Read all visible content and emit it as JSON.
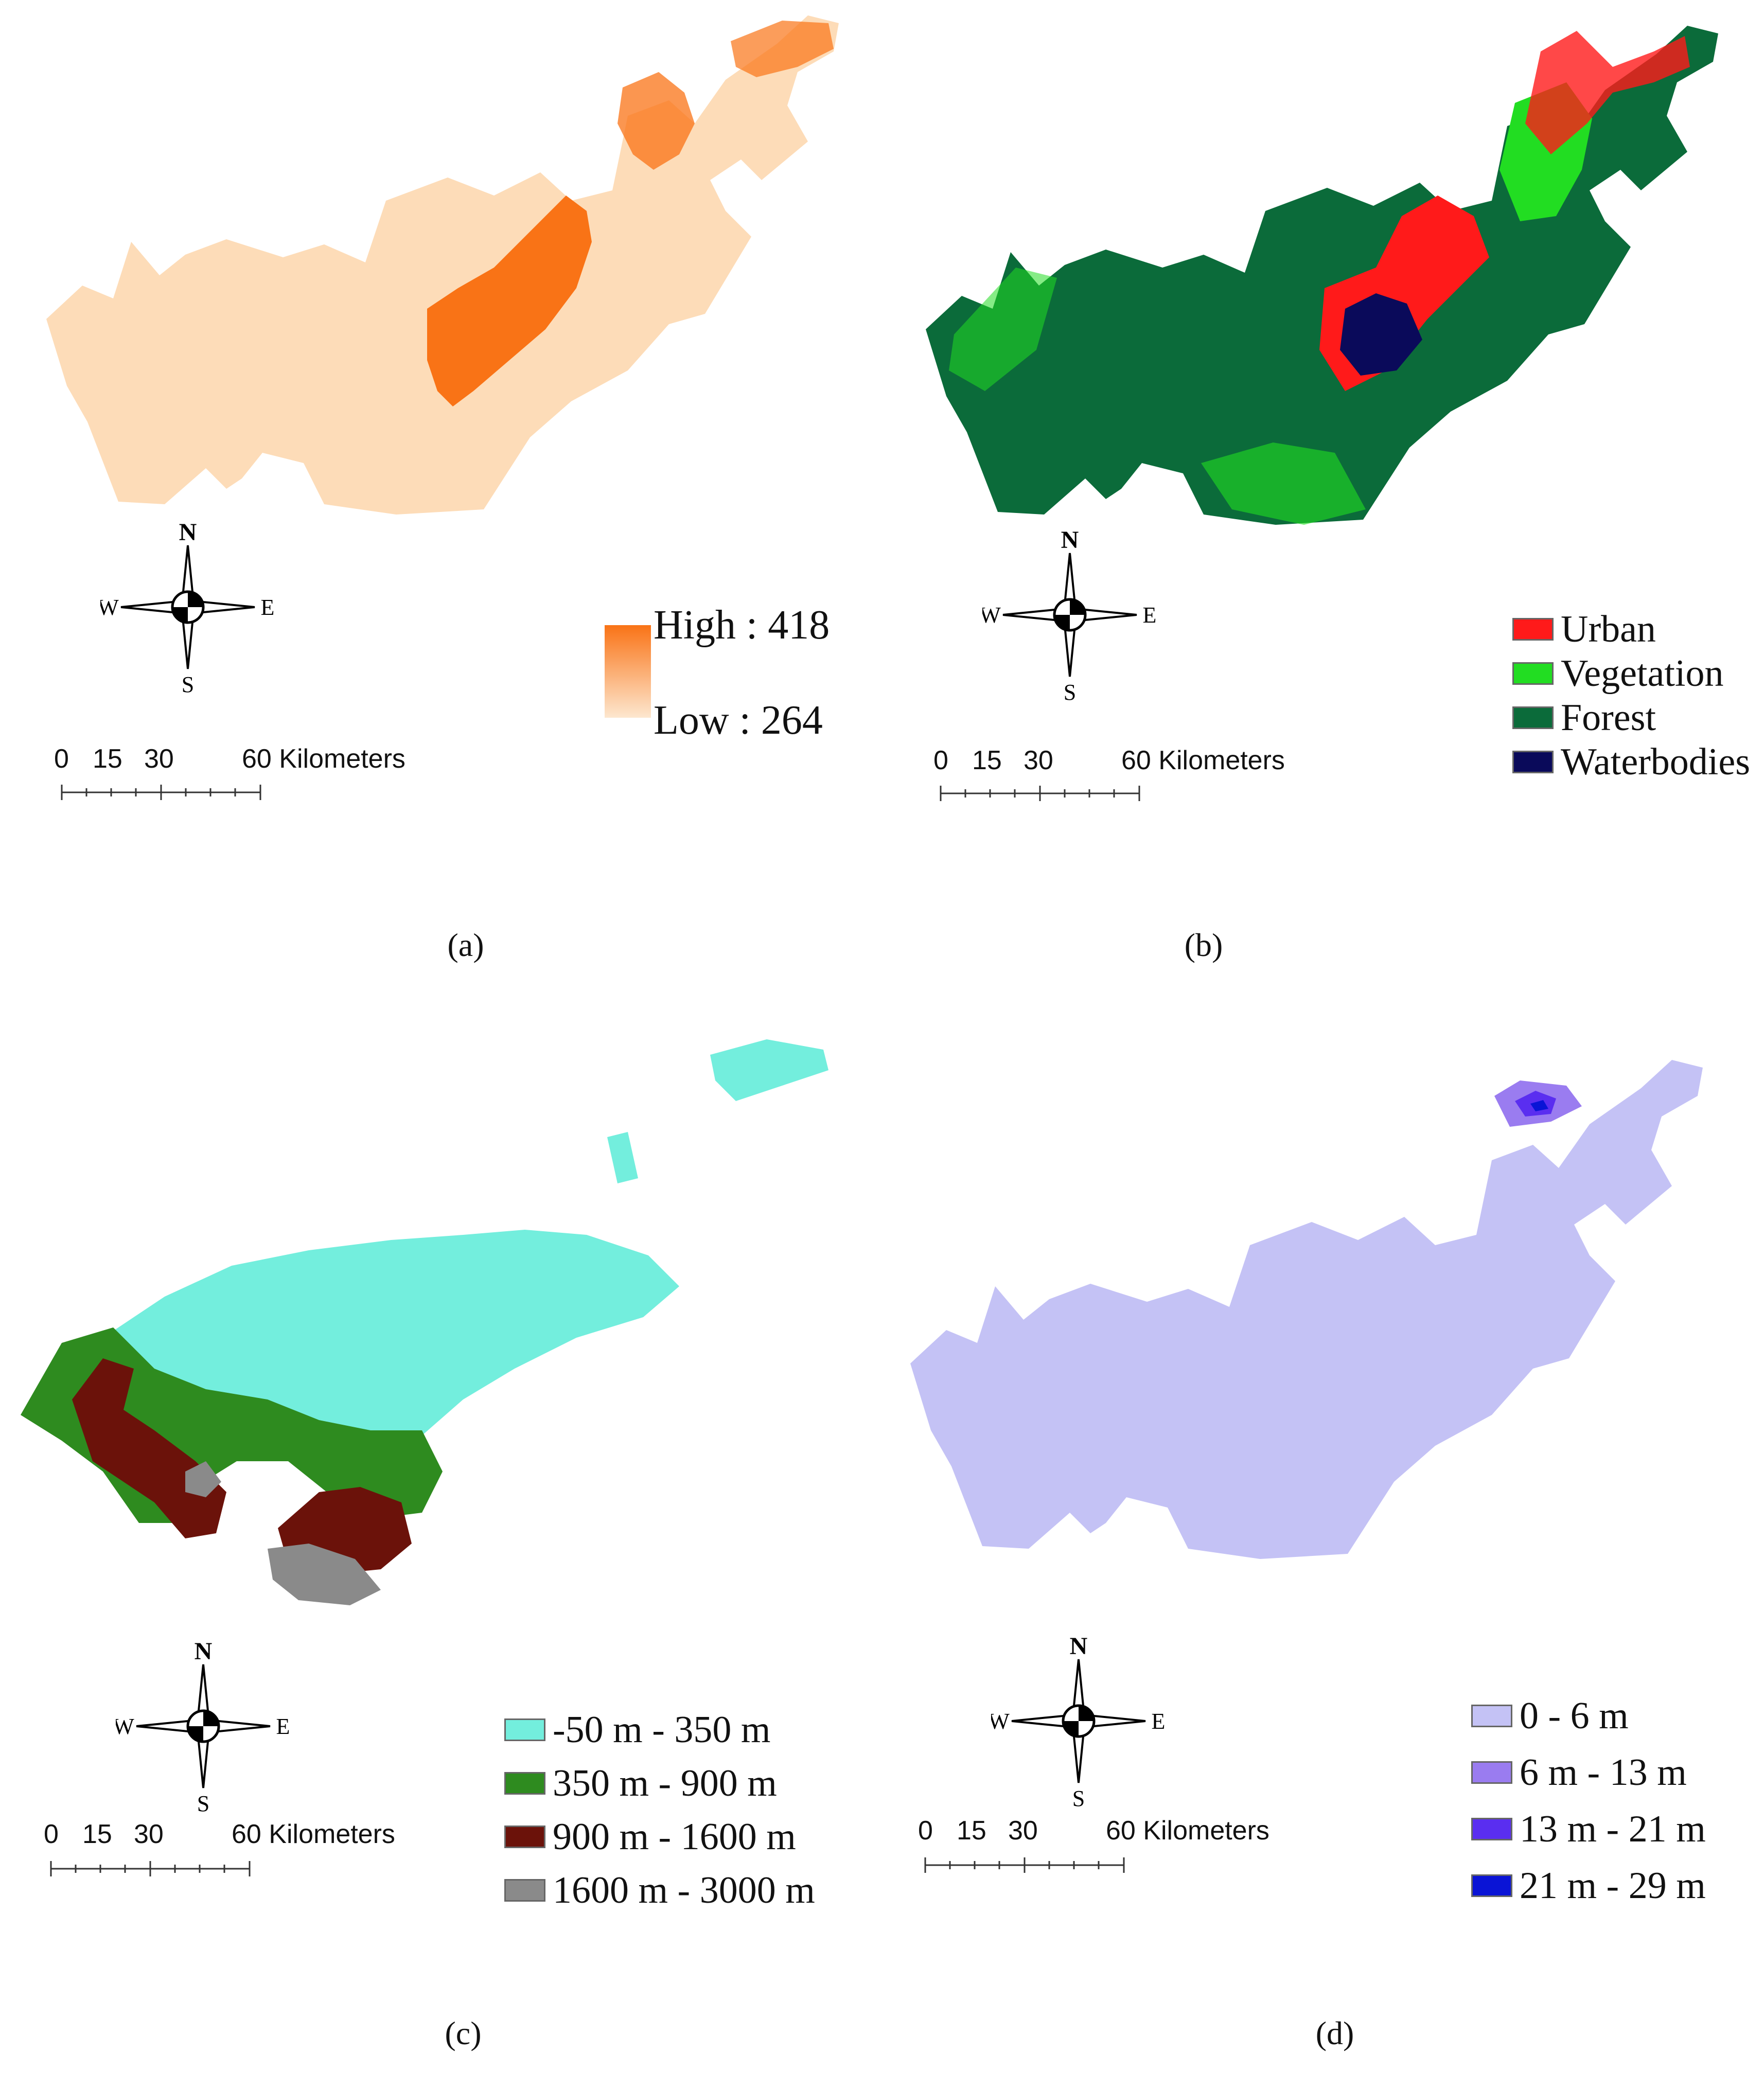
{
  "colors": {
    "a_low": "#fddcb8",
    "a_high": "#f97316",
    "b_urban": "#ff1a1a",
    "b_vegetation": "#22dd22",
    "b_forest": "#0b6b3a",
    "b_water": "#0a0a5a",
    "c_1": "#73eedd",
    "c_2": "#2e8b1f",
    "c_3": "#6b120a",
    "c_4": "#8a8a8a",
    "d_1": "#c4c2f5",
    "d_2": "#9a7cf0",
    "d_3": "#5a2ef0",
    "d_4": "#0a14d6"
  },
  "compass": {
    "n": "N",
    "s": "S",
    "e": "E",
    "w": "W"
  },
  "scale": {
    "t0": "0",
    "t1": "15",
    "t2": "30",
    "t3": "60 Kilometers"
  },
  "panels": {
    "a": {
      "caption": "(a)",
      "legend_high": "High : 418",
      "legend_low": "Low : 264"
    },
    "b": {
      "caption": "(b)",
      "legend": [
        "Urban",
        "Vegetation",
        "Forest",
        "Waterbodies"
      ]
    },
    "c": {
      "caption": "(c)",
      "legend": [
        "-50 m - 350 m",
        "350 m - 900 m",
        "900 m - 1600 m",
        "1600 m - 3000 m"
      ]
    },
    "d": {
      "caption": "(d)",
      "legend": [
        "0 - 6 m",
        "6 m - 13 m",
        "13 m - 21 m",
        "21 m - 29 m"
      ]
    }
  }
}
